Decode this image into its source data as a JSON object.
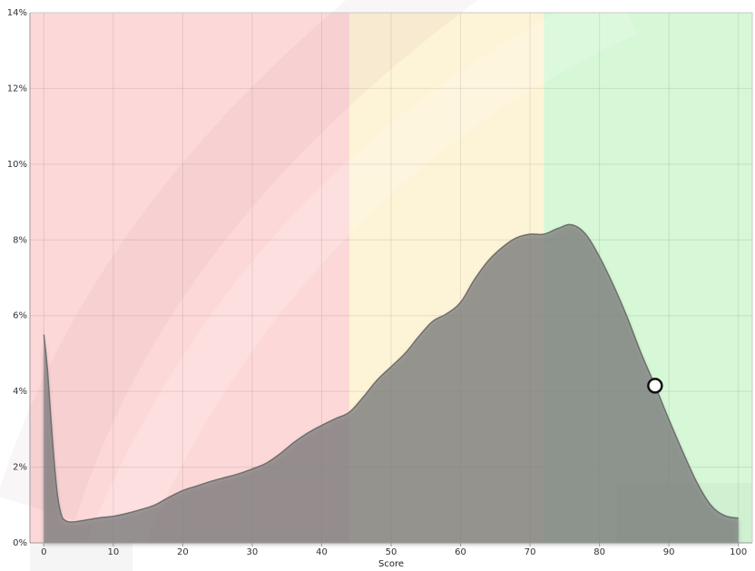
{
  "chart_data": {
    "type": "area",
    "title": "",
    "xlabel": "Score",
    "ylabel": "",
    "xlim": [
      -2,
      102
    ],
    "ylim": [
      0,
      14
    ],
    "x_ticks": [
      0,
      10,
      20,
      30,
      40,
      50,
      60,
      70,
      80,
      90,
      100
    ],
    "y_ticks": [
      0,
      2,
      4,
      6,
      8,
      10,
      12,
      14
    ],
    "y_tick_labels": [
      "0%",
      "2%",
      "4%",
      "6%",
      "8%",
      "10%",
      "12%",
      "14%"
    ],
    "x_tick_labels": [
      "0",
      "10",
      "20",
      "30",
      "40",
      "50",
      "60",
      "70",
      "80",
      "90",
      "100"
    ],
    "grid": true,
    "bands": [
      {
        "from": -2,
        "to": 44,
        "color": "#fdd8d8"
      },
      {
        "from": 44,
        "to": 72,
        "color": "#fdf3d6"
      },
      {
        "from": 72,
        "to": 102,
        "color": "#d6f8d6"
      }
    ],
    "series": [
      {
        "color": "#7f7f7f",
        "points": [
          [
            0,
            5.5
          ],
          [
            0.5,
            4.6
          ],
          [
            1,
            3.3
          ],
          [
            1.5,
            2.1
          ],
          [
            2,
            1.2
          ],
          [
            2.5,
            0.75
          ],
          [
            3,
            0.6
          ],
          [
            4,
            0.55
          ],
          [
            6,
            0.6
          ],
          [
            8,
            0.66
          ],
          [
            10,
            0.7
          ],
          [
            12,
            0.78
          ],
          [
            14,
            0.88
          ],
          [
            16,
            1.0
          ],
          [
            18,
            1.2
          ],
          [
            20,
            1.38
          ],
          [
            22,
            1.5
          ],
          [
            24,
            1.62
          ],
          [
            26,
            1.72
          ],
          [
            28,
            1.82
          ],
          [
            30,
            1.95
          ],
          [
            32,
            2.1
          ],
          [
            34,
            2.35
          ],
          [
            36,
            2.65
          ],
          [
            38,
            2.9
          ],
          [
            40,
            3.1
          ],
          [
            42,
            3.28
          ],
          [
            44,
            3.45
          ],
          [
            46,
            3.85
          ],
          [
            48,
            4.3
          ],
          [
            50,
            4.65
          ],
          [
            52,
            5.0
          ],
          [
            54,
            5.45
          ],
          [
            56,
            5.85
          ],
          [
            58,
            6.05
          ],
          [
            60,
            6.35
          ],
          [
            62,
            6.95
          ],
          [
            64,
            7.45
          ],
          [
            66,
            7.8
          ],
          [
            68,
            8.05
          ],
          [
            70,
            8.15
          ],
          [
            72,
            8.15
          ],
          [
            74,
            8.3
          ],
          [
            76,
            8.4
          ],
          [
            78,
            8.15
          ],
          [
            80,
            7.55
          ],
          [
            82,
            6.8
          ],
          [
            84,
            5.95
          ],
          [
            86,
            5.0
          ],
          [
            88,
            4.15
          ],
          [
            90,
            3.25
          ],
          [
            92,
            2.4
          ],
          [
            94,
            1.6
          ],
          [
            96,
            1.0
          ],
          [
            98,
            0.72
          ],
          [
            100,
            0.65
          ]
        ]
      }
    ],
    "marker": {
      "x": 88,
      "y": 4.15
    }
  }
}
